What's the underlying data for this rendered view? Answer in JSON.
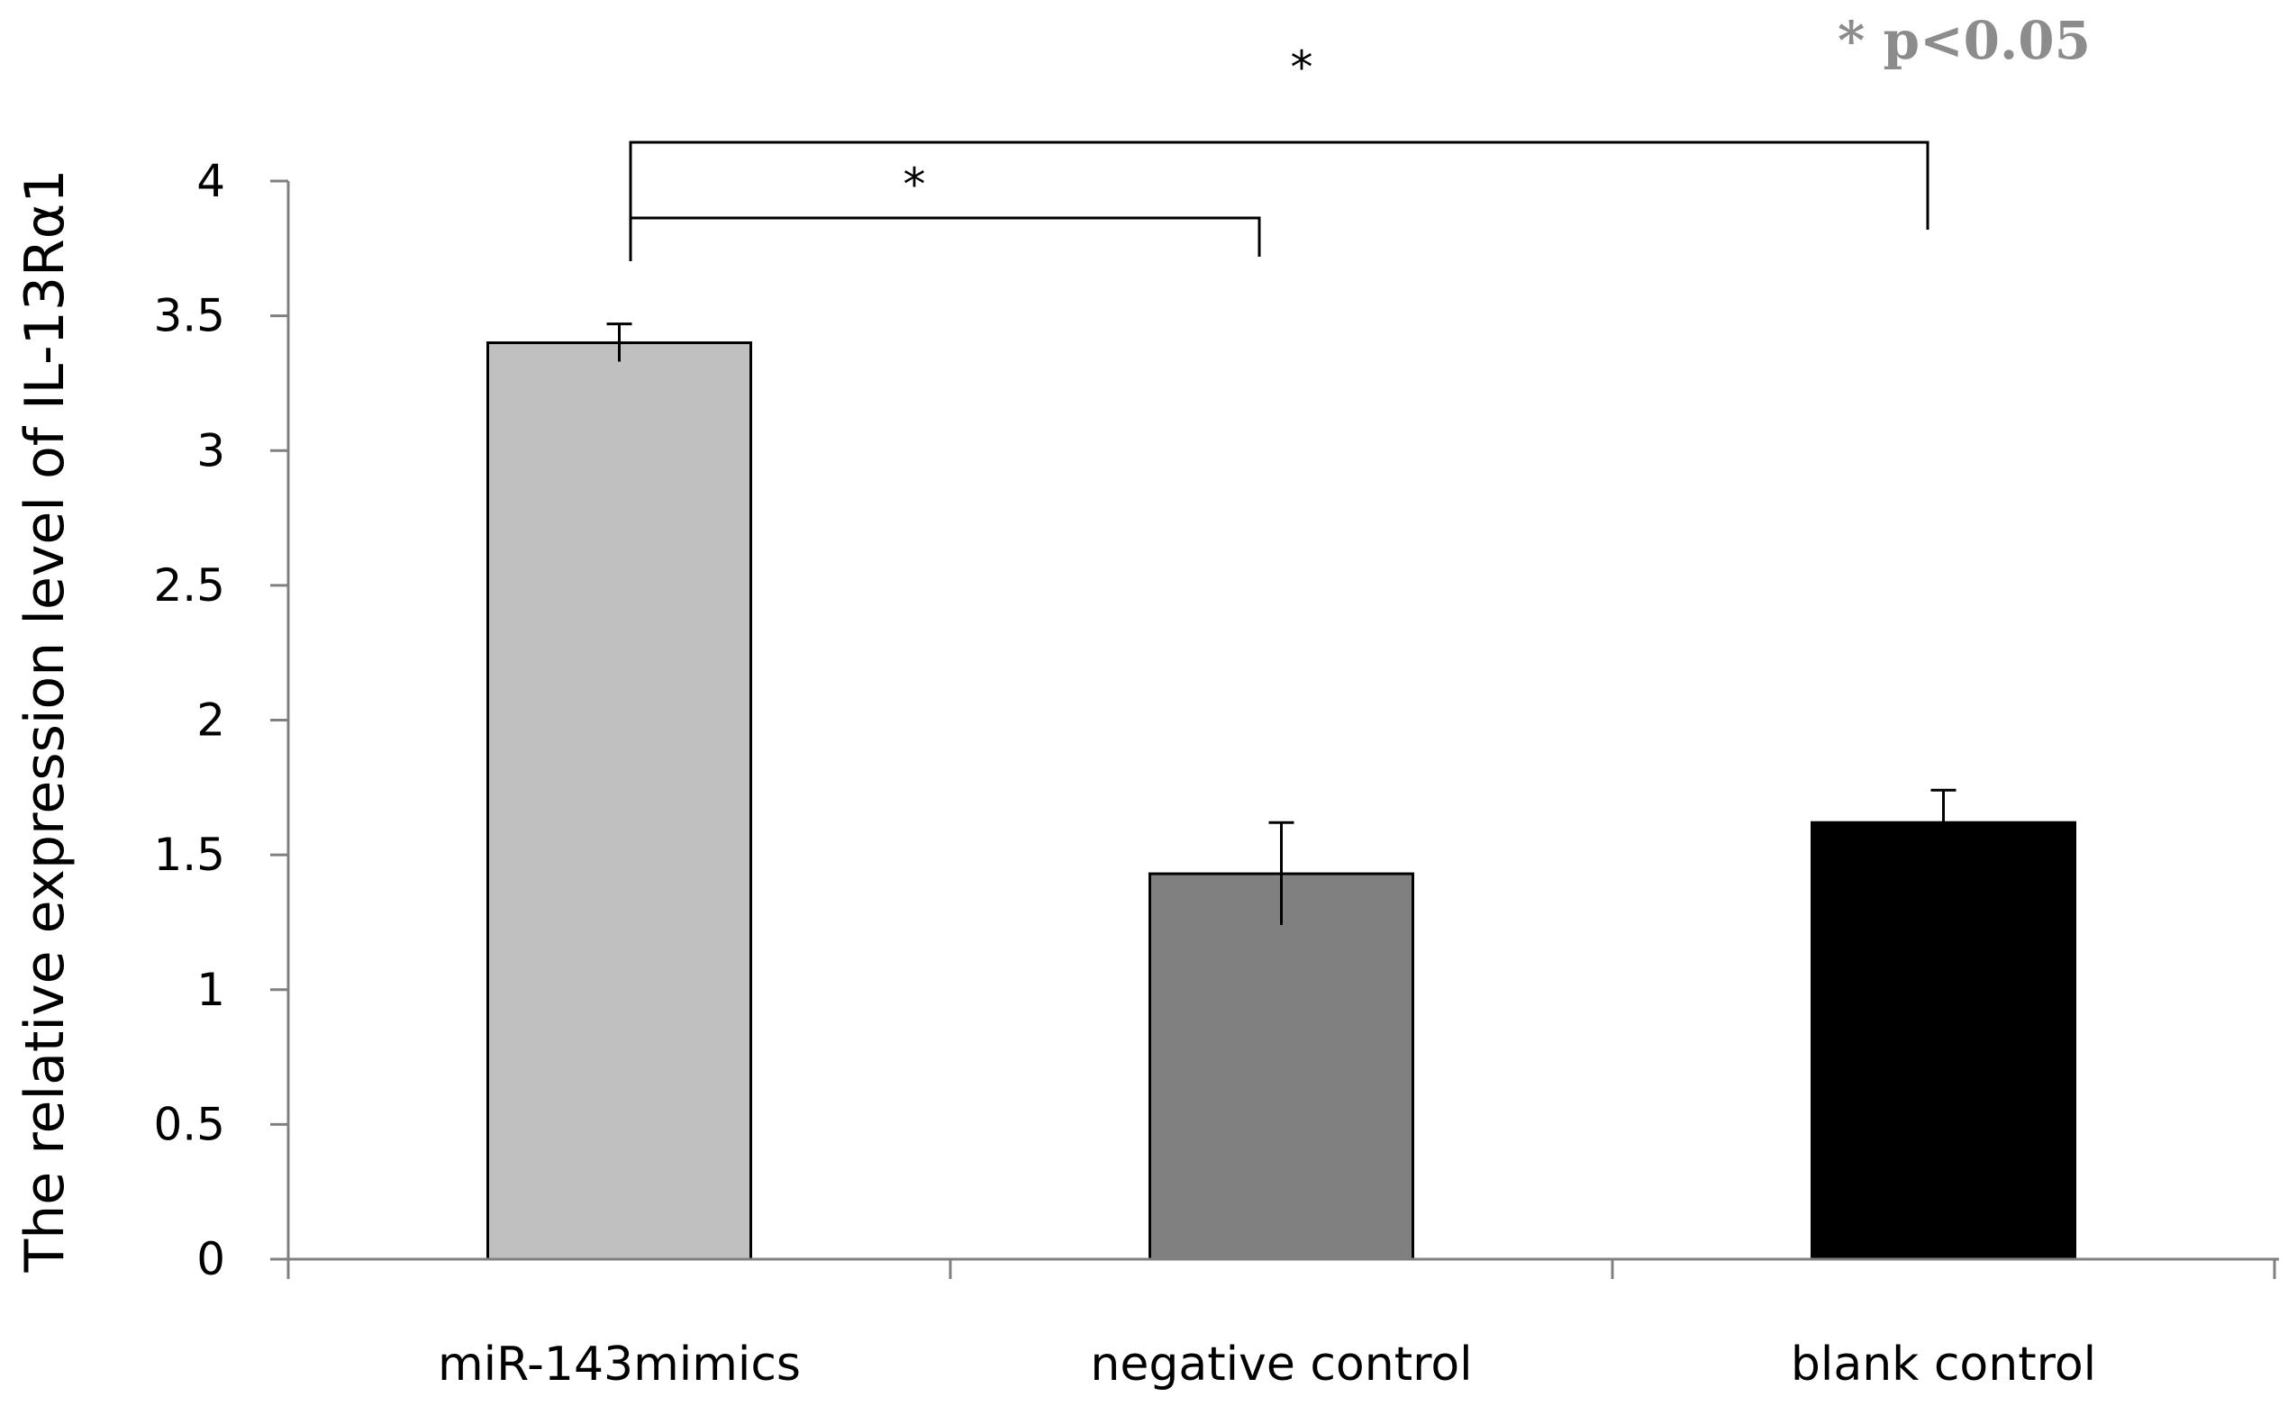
{
  "chart_data": {
    "type": "bar",
    "title": "",
    "xlabel": "",
    "ylabel": "The relative expression level of IL-13Rα1",
    "categories": [
      "miR-143mimics",
      "negative control",
      "blank control"
    ],
    "values": [
      3.4,
      1.43,
      1.62
    ],
    "errors": [
      0.07,
      0.19,
      0.12
    ],
    "bar_colors": [
      "#c0c0c0",
      "#808080",
      "#000000"
    ],
    "ylim": [
      0,
      4
    ],
    "yticks": [
      0,
      0.5,
      1,
      1.5,
      2,
      2.5,
      3,
      3.5,
      4
    ],
    "ytick_labels": [
      "0",
      "0.5",
      "1",
      "1.5",
      "2",
      "2.5",
      "3",
      "3.5",
      "4"
    ],
    "grid": false,
    "significance": [
      {
        "from": 0,
        "to": 1,
        "label": "*"
      },
      {
        "from": 0,
        "to": 2,
        "label": "*"
      }
    ],
    "legend_note": {
      "text": "* p<0.05",
      "color": "#8c8c8c"
    }
  }
}
